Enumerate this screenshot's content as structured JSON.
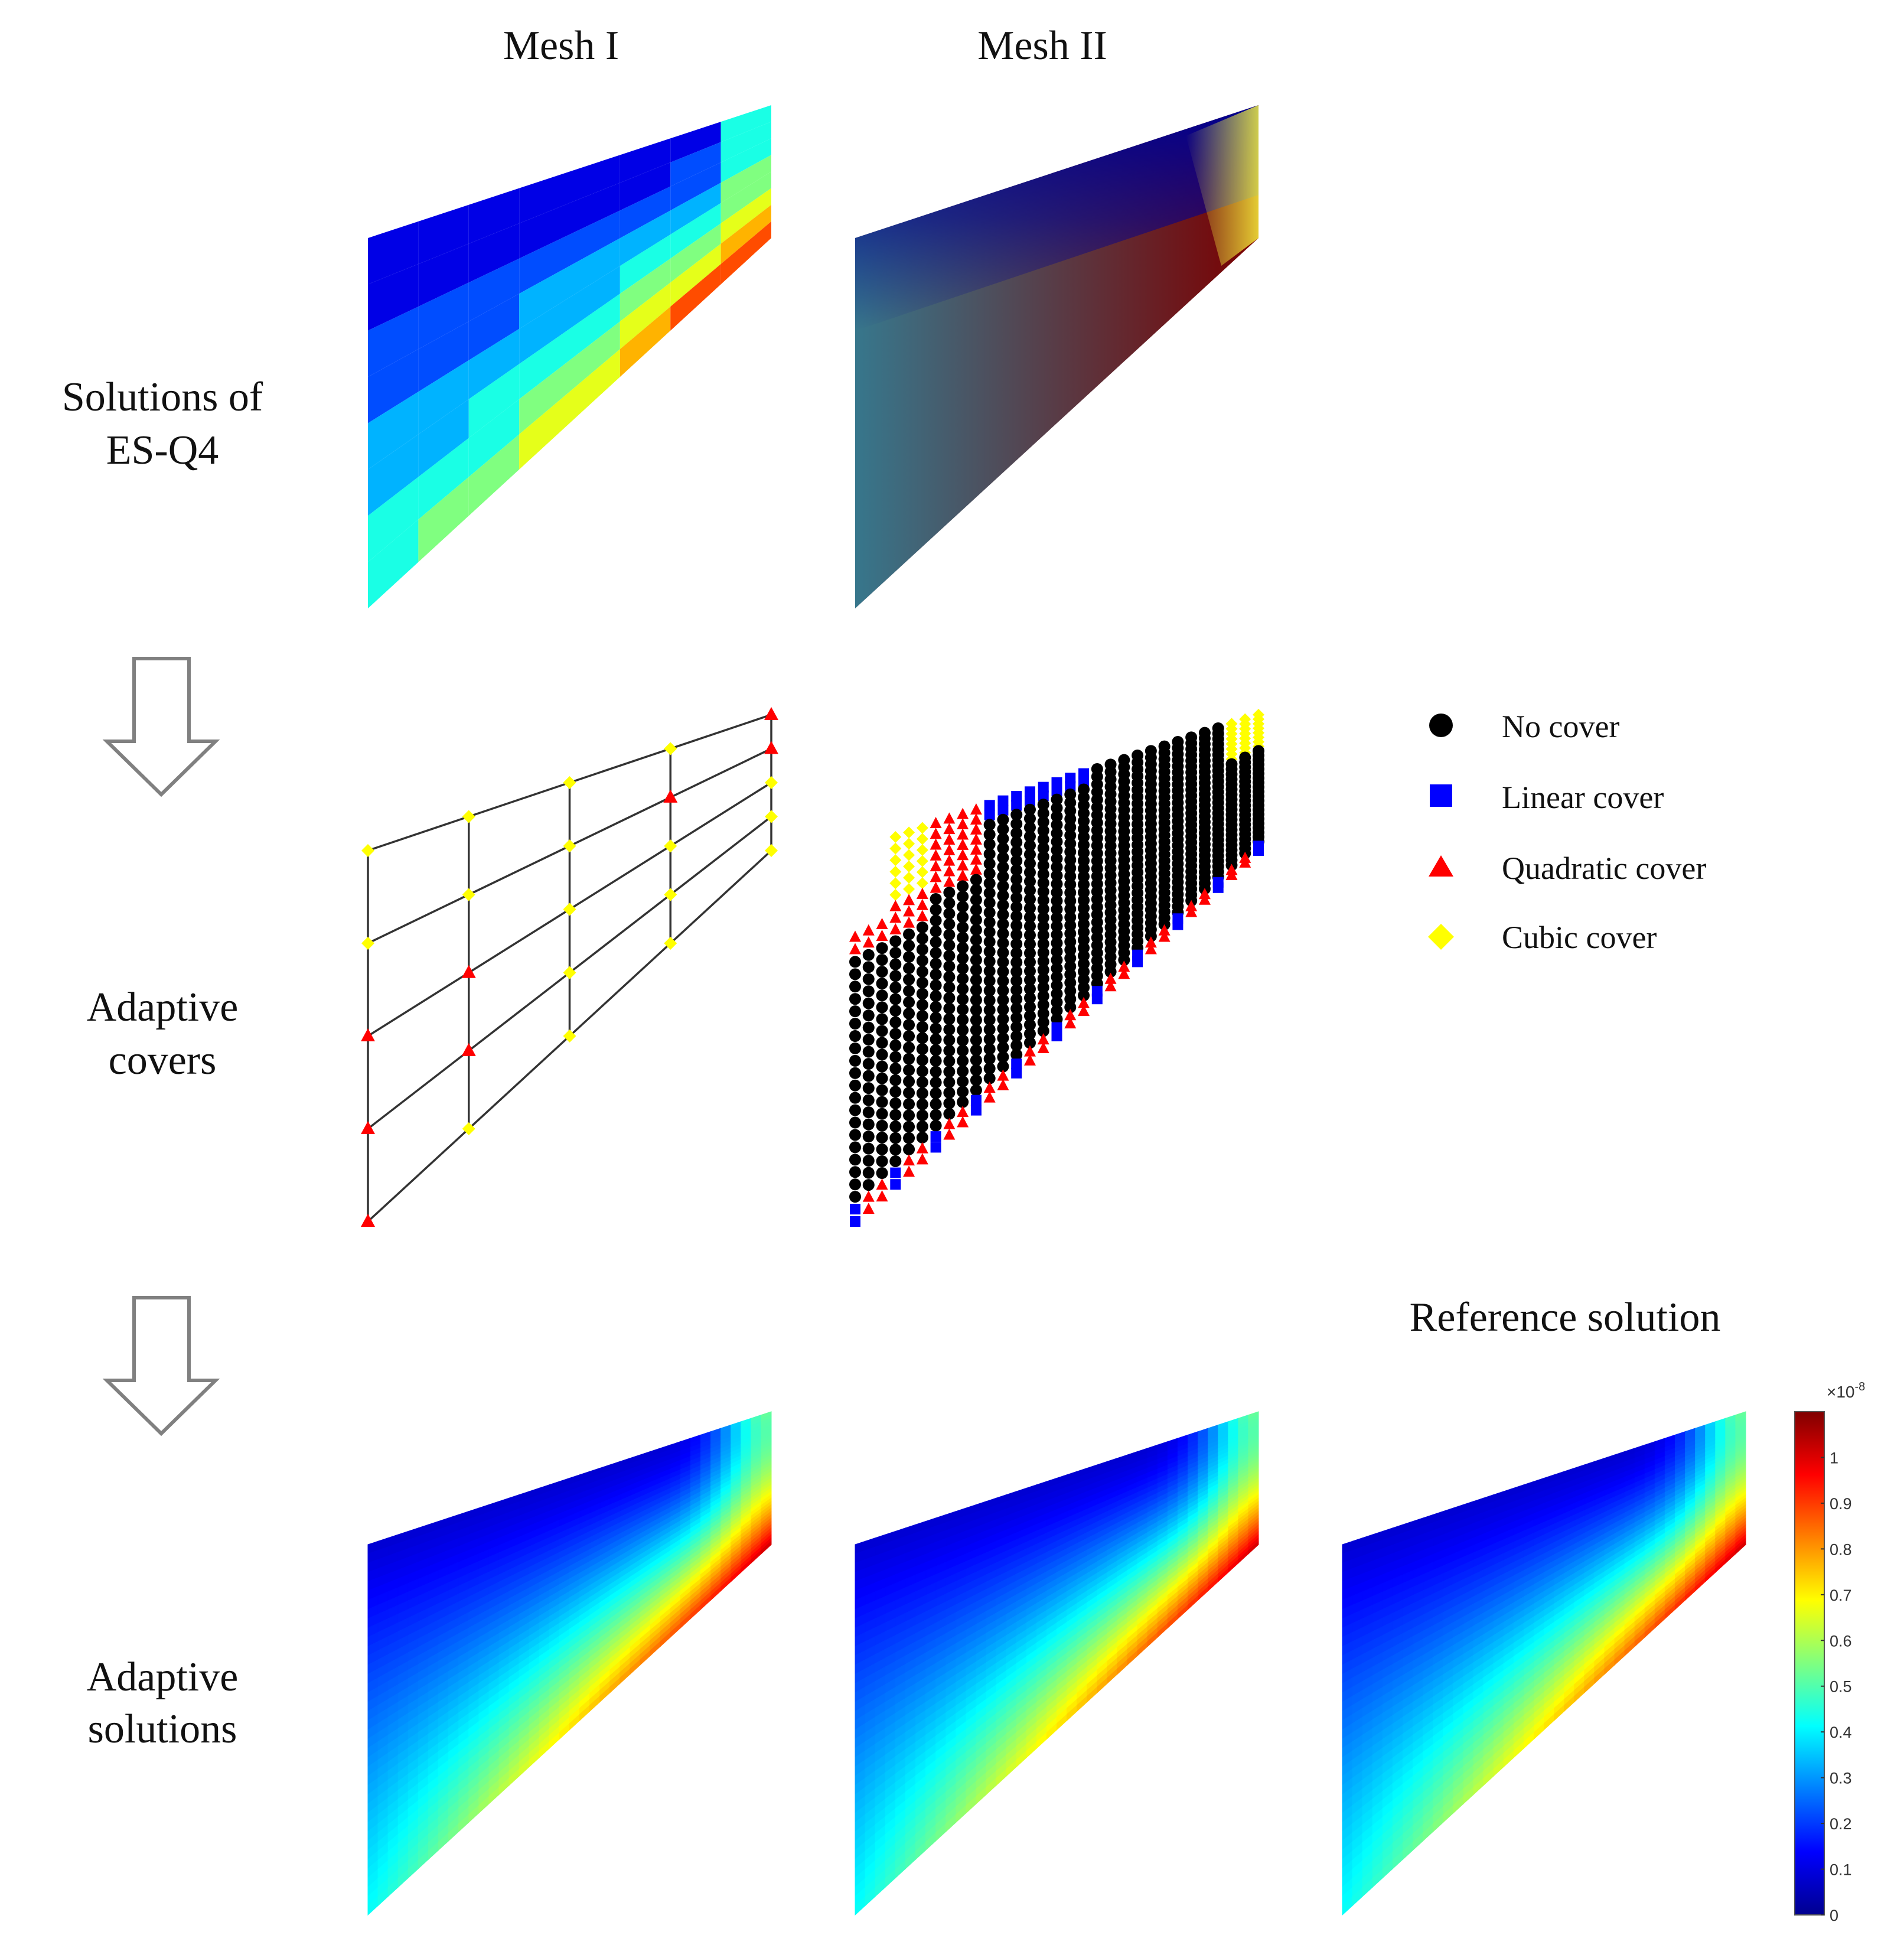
{
  "column_headers": [
    "Mesh I",
    "Mesh II"
  ],
  "row_labels": {
    "solutions": [
      "Solutions of",
      "ES-Q4"
    ],
    "covers": [
      "Adaptive",
      "covers"
    ],
    "adaptive": [
      "Adaptive",
      "solutions"
    ]
  },
  "reference_label": "Reference solution",
  "legend": [
    {
      "label": "No cover",
      "marker": "circle",
      "color": "#000000"
    },
    {
      "label": "Linear cover",
      "marker": "square",
      "color": "#0000ff"
    },
    {
      "label": "Quadratic cover",
      "marker": "triangle",
      "color": "#ff0000"
    },
    {
      "label": "Cubic cover",
      "marker": "diamond",
      "color": "#ffff00"
    }
  ],
  "colorbar": {
    "colormap": "jet",
    "min": 0,
    "max": 1.1,
    "ticks": [
      "0",
      "0.1",
      "0.2",
      "0.3",
      "0.4",
      "0.5",
      "0.6",
      "0.7",
      "0.8",
      "0.9",
      "1"
    ],
    "multiplier_base": "×10",
    "multiplier_exp": "-8"
  },
  "colors": {
    "line": "#333333",
    "arrow": "#808080",
    "no_cover": "#000000",
    "linear": "#0000ff",
    "quadratic": "#ff0000",
    "cubic": "#ffff00"
  }
}
